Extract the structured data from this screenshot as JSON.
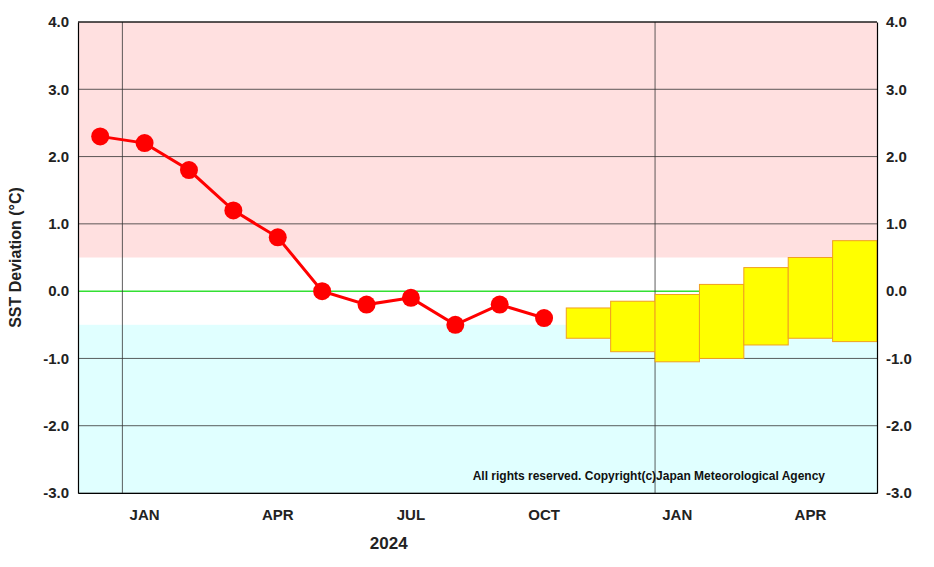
{
  "chart_data": {
    "type": "line",
    "ylabel": "SST Deviation (°C)",
    "xlabel": "2024",
    "categories": [
      null,
      "JAN",
      null,
      null,
      "APR",
      null,
      null,
      "JUL",
      null,
      null,
      "OCT",
      null,
      null,
      "JAN",
      null,
      null,
      "APR",
      null
    ],
    "series": [
      {
        "type": "line",
        "color": "#ff0000",
        "marker": "circle",
        "values": [
          2.3,
          2.2,
          1.8,
          1.2,
          0.8,
          0.0,
          -0.2,
          -0.1,
          -0.5,
          -0.2,
          -0.4,
          null,
          null,
          null,
          null,
          null,
          null,
          null
        ]
      },
      {
        "type": "box",
        "color": "#ffff00",
        "low": [
          null,
          null,
          null,
          null,
          null,
          null,
          null,
          null,
          null,
          null,
          null,
          -0.7,
          -0.9,
          -1.05,
          -1.0,
          -0.8,
          -0.7,
          -0.75
        ],
        "high": [
          null,
          null,
          null,
          null,
          null,
          null,
          null,
          null,
          null,
          null,
          null,
          -0.25,
          -0.15,
          -0.05,
          0.1,
          0.35,
          0.5,
          0.75
        ]
      }
    ],
    "bands": [
      {
        "range": [
          0.5,
          4.0
        ],
        "color": "#ffe0e0"
      },
      {
        "range": [
          -3.0,
          -0.5
        ],
        "color": "#e0ffff"
      }
    ],
    "ylim": [
      -3.0,
      4.0
    ],
    "yticks": [
      {
        "value": -3,
        "label": "-3.0"
      },
      {
        "value": -2,
        "label": "-2.0"
      },
      {
        "value": -1,
        "label": "-1.0"
      },
      {
        "value": 0,
        "label": "0.0"
      },
      {
        "value": 1,
        "label": "1.0"
      },
      {
        "value": 2,
        "label": "2.0"
      },
      {
        "value": 3,
        "label": "3.0"
      },
      {
        "value": 4,
        "label": "4.0"
      }
    ],
    "y2lim": [
      -3.0,
      4.0
    ],
    "y2ticks": [
      {
        "value": -3,
        "label": "-3.0"
      },
      {
        "value": -2,
        "label": "-2.0"
      },
      {
        "value": -1,
        "label": "-1.0"
      },
      {
        "value": 0,
        "label": "0.0"
      },
      {
        "value": 1,
        "label": "1.0"
      },
      {
        "value": 2,
        "label": "2.0"
      },
      {
        "value": 3,
        "label": "3.0"
      },
      {
        "value": 4,
        "label": "4.0"
      }
    ],
    "grid": true,
    "annotations": [
      {
        "text": "All rights reserved. Copyright(c)Japan Meteorological Agency"
      }
    ]
  }
}
